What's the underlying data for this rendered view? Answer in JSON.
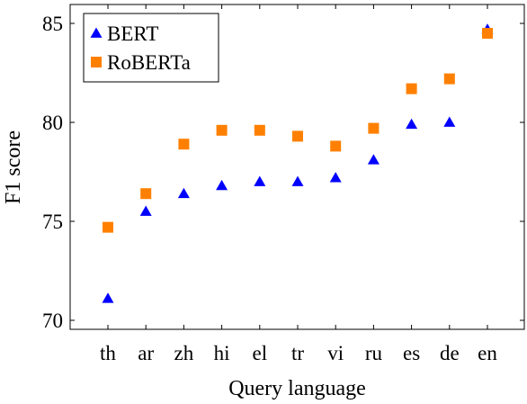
{
  "chart_data": {
    "type": "scatter",
    "categories": [
      "th",
      "ar",
      "zh",
      "hi",
      "el",
      "tr",
      "vi",
      "ru",
      "es",
      "de",
      "en"
    ],
    "series": [
      {
        "name": "BERT",
        "marker": "triangle",
        "color": "#0000ff",
        "values": [
          71.1,
          75.5,
          76.4,
          76.8,
          77.0,
          77.0,
          77.2,
          78.1,
          79.9,
          80.0,
          84.7
        ]
      },
      {
        "name": "RoBERTa",
        "marker": "square",
        "color": "#ff8000",
        "values": [
          74.7,
          76.4,
          78.9,
          79.6,
          79.6,
          79.3,
          78.8,
          79.7,
          81.7,
          82.2,
          84.5
        ]
      }
    ],
    "xlabel": "Query language",
    "ylabel": "F1 score",
    "ylim": [
      70,
      86
    ],
    "yticks": [
      70,
      75,
      80,
      85
    ],
    "grid": false,
    "legend_position": "top-left"
  }
}
